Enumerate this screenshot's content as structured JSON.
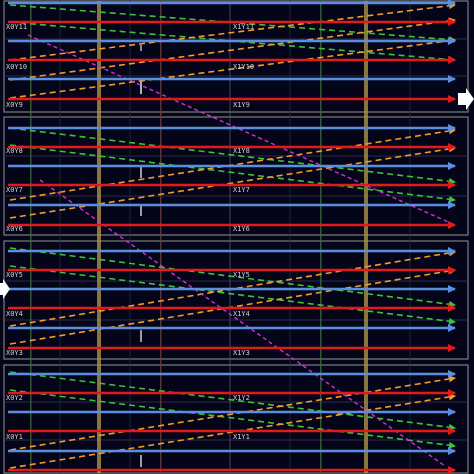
{
  "regions": {
    "x0y11": "X0Y11",
    "x1y11": "X1Y11",
    "x0y10": "X0Y10",
    "x1y10": "X1Y10",
    "x0y9": "X0Y9",
    "x1y9": "X1Y9",
    "x0y8": "X0Y8",
    "x1y8": "X1Y8",
    "x0y7": "X0Y7",
    "x1y7": "X1Y7",
    "x0y6": "X0Y6",
    "x1y6": "X1Y6",
    "x0y5": "X0Y5",
    "x1y5": "X1Y5",
    "x0y4": "X0Y4",
    "x1y4": "X1Y4",
    "x0y3": "X0Y3",
    "x1y3": "X1Y3",
    "x0y2": "X0Y2",
    "x1y2": "X1Y2",
    "x0y1": "X0Y1",
    "x1y1": "X1Y1"
  },
  "colors": {
    "background": "#05051a",
    "region_border": "#7d7d7d",
    "red_route": "#e41a1a",
    "blue_route": "#5a8fe0",
    "orange_route": "#f39a2a",
    "green_route": "#39c43a",
    "magenta_route": "#d42fd6",
    "column_highlight": "#b59a4a"
  },
  "icons": {
    "right_port": "white-arrow-right-icon",
    "left_port": "white-arrow-left-icon"
  }
}
